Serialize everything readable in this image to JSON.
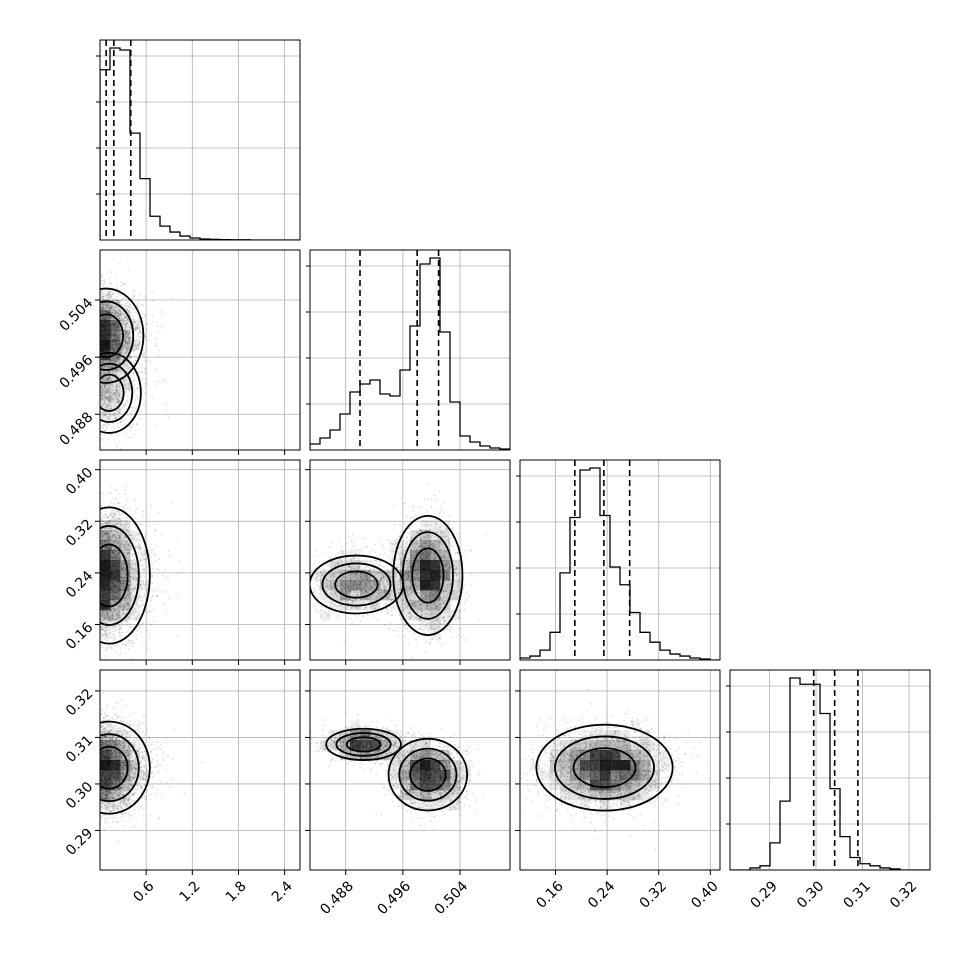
{
  "chart_data": {
    "type": "corner",
    "grid": true,
    "parameters": [
      {
        "index": 0,
        "range": [
          0.0,
          2.6
        ],
        "ticks": [
          0.6,
          1.2,
          1.8,
          2.4
        ],
        "tick_labels": [
          "0.6",
          "1.2",
          "1.8",
          "2.4"
        ]
      },
      {
        "index": 1,
        "range": [
          0.483,
          0.511
        ],
        "ticks": [
          0.488,
          0.496,
          0.504
        ],
        "tick_labels": [
          "0.488",
          "0.496",
          "0.504"
        ]
      },
      {
        "index": 2,
        "range": [
          0.105,
          0.415
        ],
        "ticks": [
          0.16,
          0.24,
          0.32,
          0.4
        ],
        "tick_labels": [
          "0.16",
          "0.24",
          "0.32",
          "0.40"
        ]
      },
      {
        "index": 3,
        "range": [
          0.2815,
          0.3245
        ],
        "ticks": [
          0.29,
          0.3,
          0.31,
          0.32
        ],
        "tick_labels": [
          "0.29",
          "0.30",
          "0.31",
          "0.32"
        ]
      }
    ],
    "quantiles": [
      [
        0.08,
        0.18,
        0.4
      ],
      [
        0.49,
        0.498,
        0.501
      ],
      [
        0.19,
        0.235,
        0.275
      ],
      [
        0.2995,
        0.304,
        0.309
      ]
    ],
    "histograms": [
      {
        "edges_start": 0.0,
        "bin_width": 0.13,
        "counts": [
          0.86,
          0.97,
          0.96,
          0.54,
          0.31,
          0.12,
          0.07,
          0.04,
          0.02,
          0.01,
          0.005,
          0.003,
          0.002,
          0.001,
          0.001,
          0,
          0,
          0,
          0,
          0
        ]
      },
      {
        "edges_start": 0.483,
        "bin_width": 0.0014,
        "counts": [
          0.03,
          0.06,
          0.1,
          0.18,
          0.29,
          0.33,
          0.35,
          0.28,
          0.27,
          0.4,
          0.62,
          0.93,
          0.96,
          0.59,
          0.24,
          0.07,
          0.04,
          0.02,
          0.01,
          0.005
        ]
      },
      {
        "edges_start": 0.105,
        "bin_width": 0.0155,
        "counts": [
          0.01,
          0.02,
          0.05,
          0.14,
          0.44,
          0.72,
          0.96,
          0.97,
          0.73,
          0.47,
          0.38,
          0.24,
          0.14,
          0.09,
          0.05,
          0.03,
          0.02,
          0.01,
          0.005,
          0
        ]
      },
      {
        "edges_start": 0.2815,
        "bin_width": 0.00215,
        "counts": [
          0,
          0,
          0.01,
          0.02,
          0.13,
          0.33,
          0.92,
          0.89,
          0.89,
          0.75,
          0.39,
          0.16,
          0.06,
          0.03,
          0.02,
          0.01,
          0.005,
          0,
          0,
          0
        ]
      }
    ],
    "joint_modes": [
      {
        "pair": [
          0,
          1
        ],
        "modes": [
          {
            "center": [
              0.08,
              0.499
            ],
            "spread": [
              0.22,
              0.003
            ],
            "weight": 0.75
          },
          {
            "center": [
              0.12,
              0.491
            ],
            "spread": [
              0.22,
              0.003
            ],
            "weight": 0.25
          }
        ]
      },
      {
        "pair": [
          0,
          2
        ],
        "modes": [
          {
            "center": [
              0.12,
              0.236
            ],
            "spread": [
              0.24,
              0.048
            ],
            "weight": 1.0
          }
        ]
      },
      {
        "pair": [
          0,
          3
        ],
        "modes": [
          {
            "center": [
              0.12,
              0.3035
            ],
            "spread": [
              0.24,
              0.0045
            ],
            "weight": 1.0
          }
        ]
      },
      {
        "pair": [
          1,
          2
        ],
        "modes": [
          {
            "center": [
              0.4995,
              0.236
            ],
            "spread": [
              0.0022,
              0.042
            ],
            "weight": 0.65
          },
          {
            "center": [
              0.4895,
              0.222
            ],
            "spread": [
              0.0035,
              0.024
            ],
            "weight": 0.35
          }
        ]
      },
      {
        "pair": [
          1,
          3
        ],
        "modes": [
          {
            "center": [
              0.4995,
              0.302
            ],
            "spread": [
              0.0025,
              0.0035
            ],
            "weight": 0.65
          },
          {
            "center": [
              0.4905,
              0.3085
            ],
            "spread": [
              0.0028,
              0.0018
            ],
            "weight": 0.35
          }
        ]
      },
      {
        "pair": [
          2,
          3
        ],
        "modes": [
          {
            "center": [
              0.236,
              0.3035
            ],
            "spread": [
              0.048,
              0.0042
            ],
            "weight": 1.0
          }
        ]
      }
    ]
  }
}
